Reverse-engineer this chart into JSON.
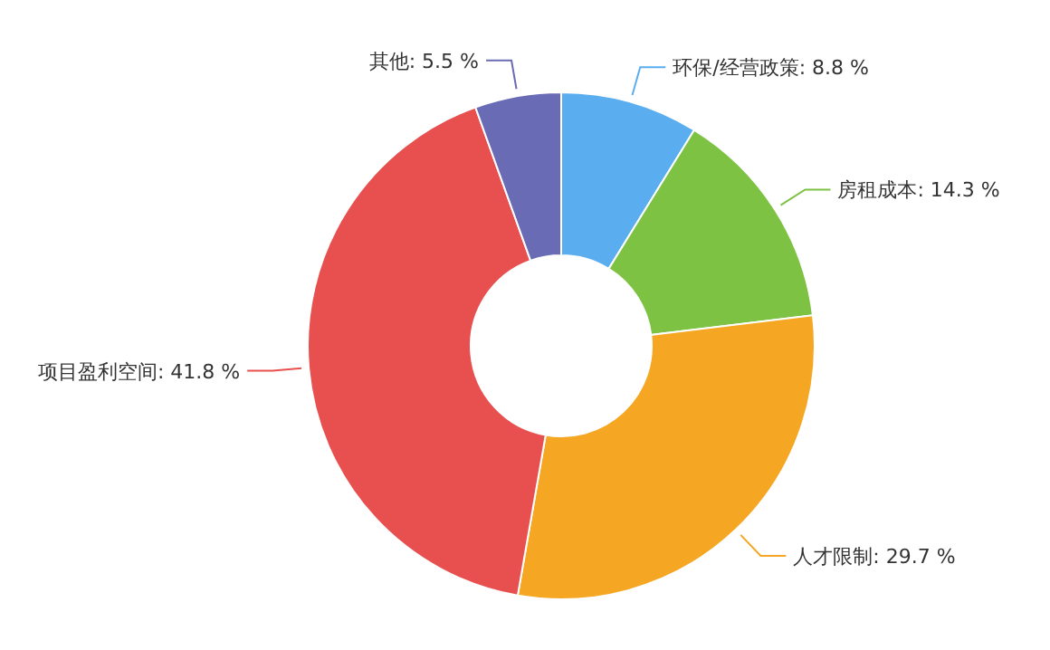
{
  "chart_data": {
    "type": "donut",
    "categories": [
      "环保/经营政策",
      "房租成本",
      "人才限制",
      "项目盈利空间",
      "其他"
    ],
    "values": [
      8.8,
      14.3,
      29.7,
      41.8,
      5.5
    ],
    "value_labels": [
      "8.8 %",
      "14.3 %",
      "29.7 %",
      "41.8 %",
      "5.5 %"
    ],
    "colors": [
      "#5aaef0",
      "#7dc243",
      "#f5a623",
      "#e8504f",
      "#6a6bb5"
    ]
  }
}
